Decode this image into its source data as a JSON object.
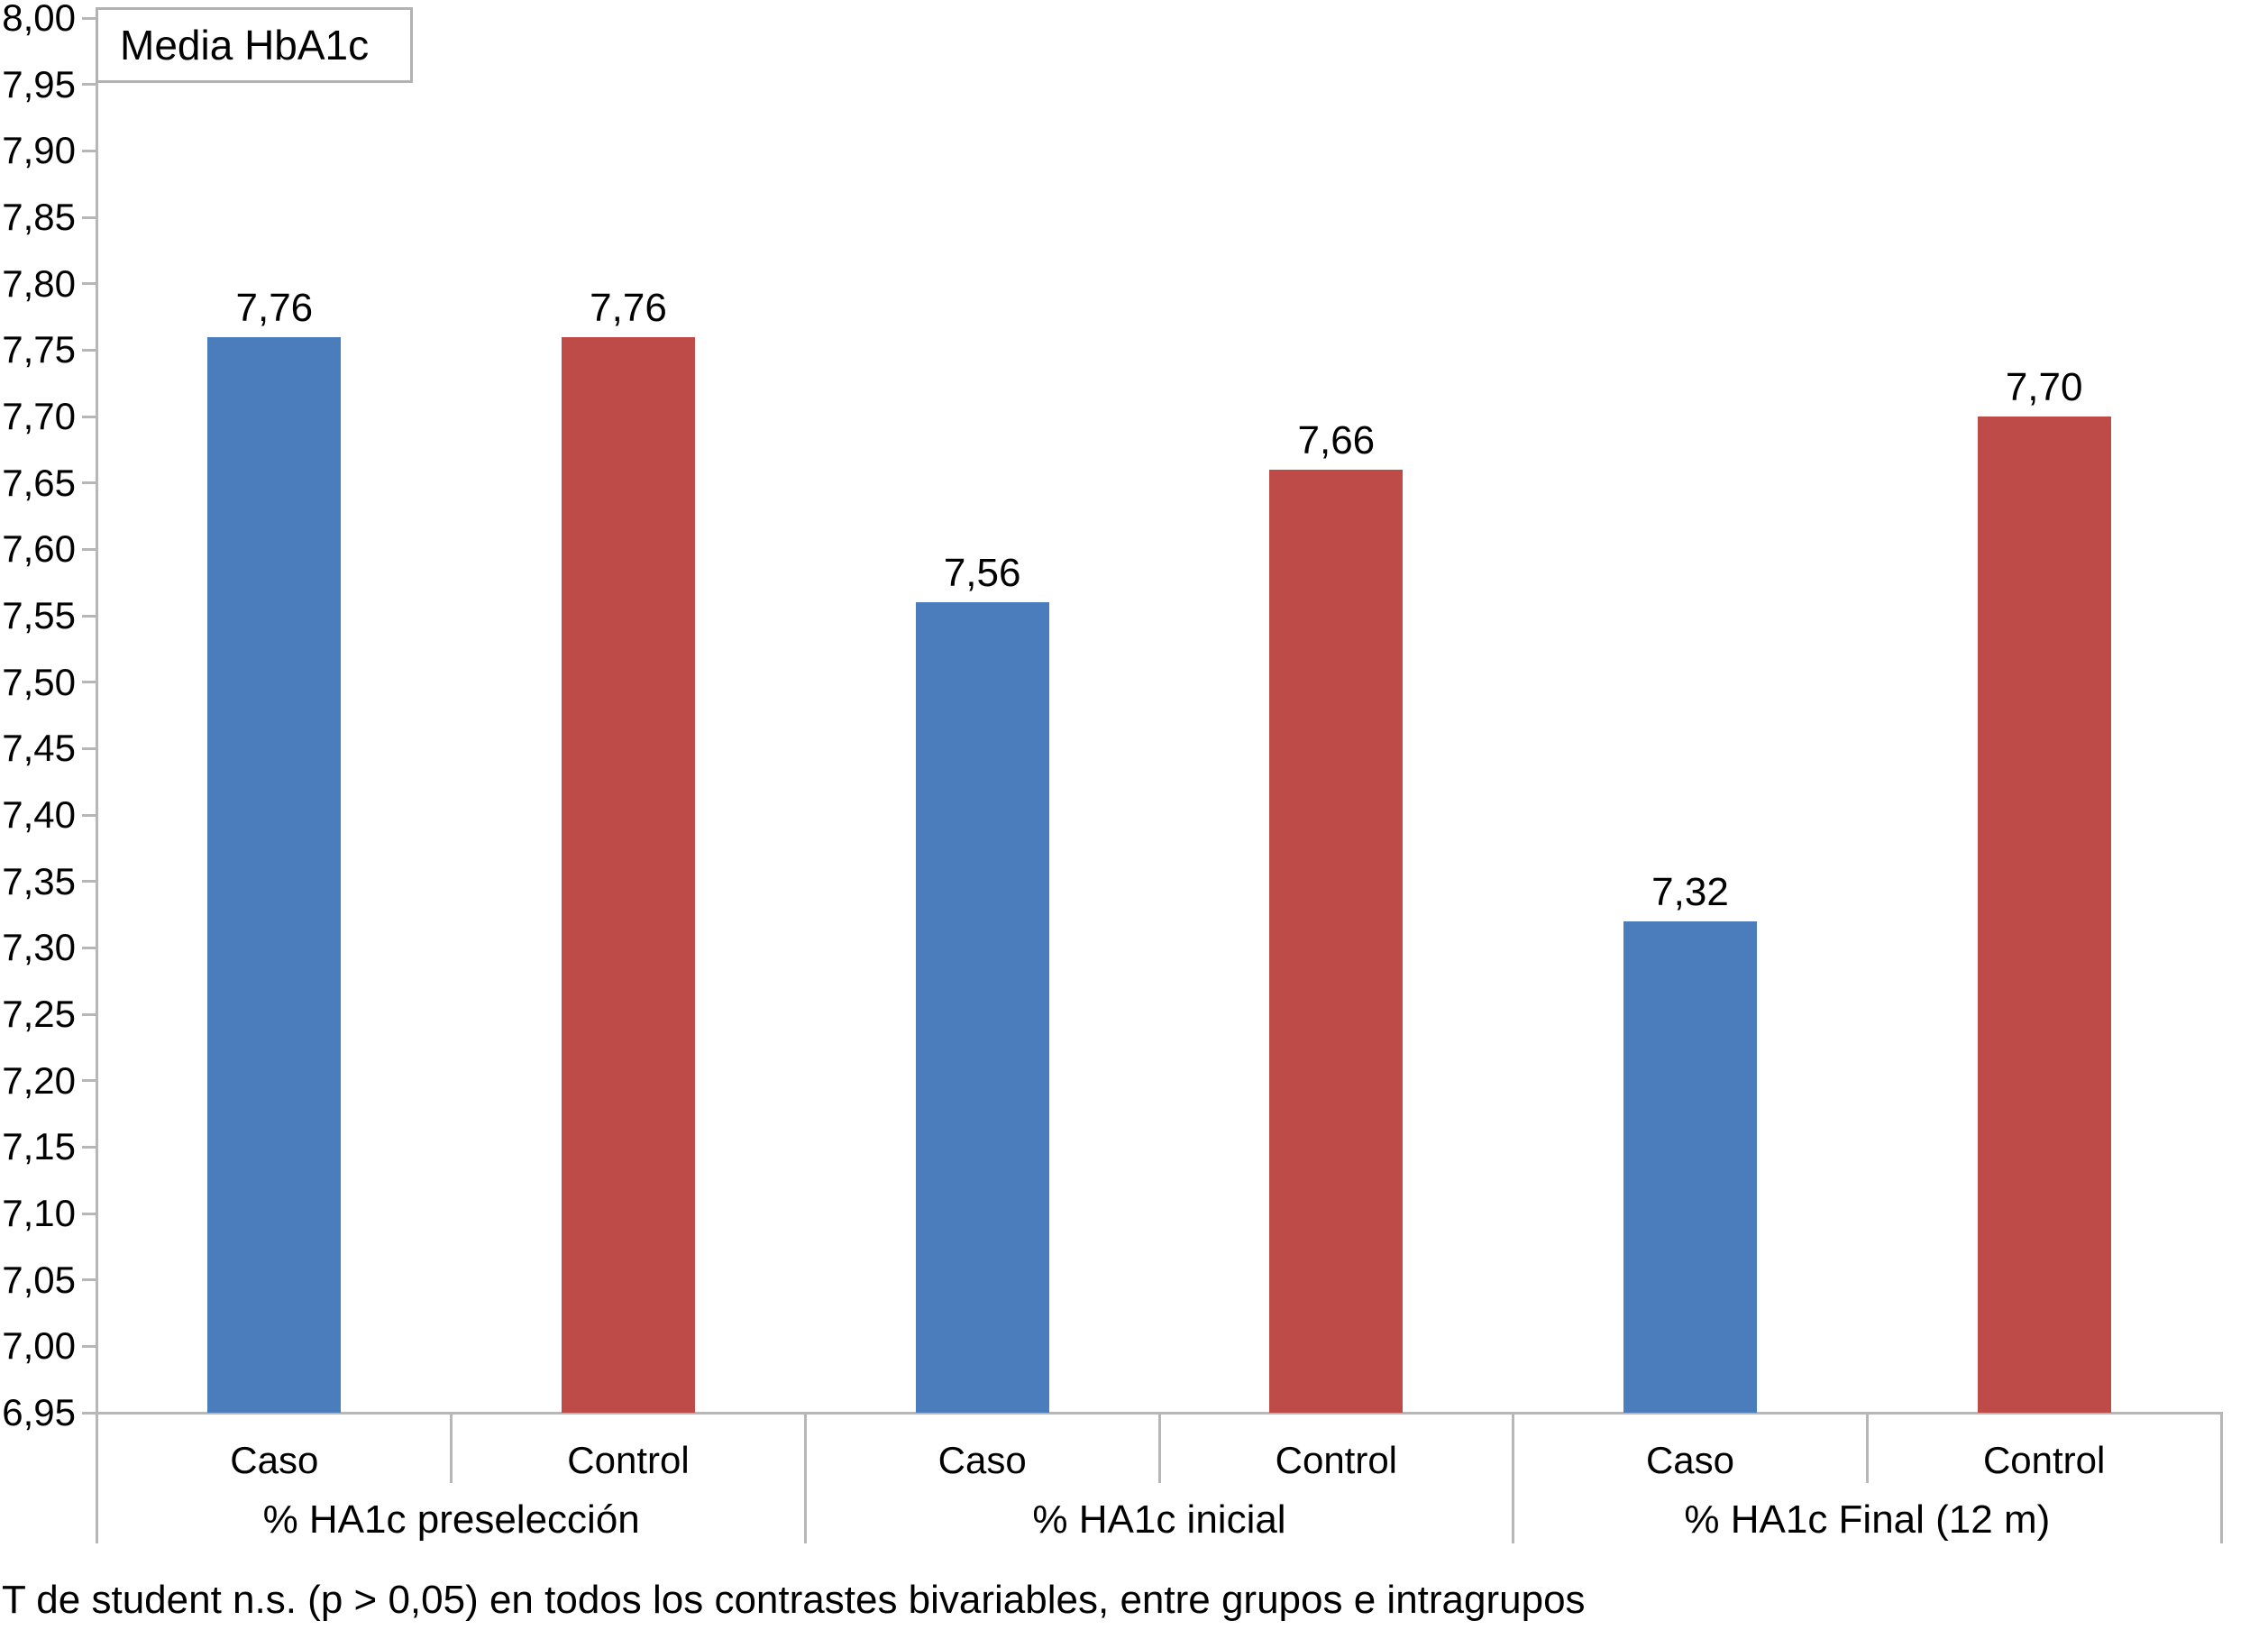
{
  "chart_data": {
    "type": "bar",
    "title": "Media HbA1c",
    "ylim": [
      6.95,
      8.0
    ],
    "ytick_step": 0.05,
    "ytick_labels": [
      "8,00",
      "7,95",
      "7,90",
      "7,85",
      "7,80",
      "7,75",
      "7,70",
      "7,65",
      "7,60",
      "7,55",
      "7,50",
      "7,45",
      "7,40",
      "7,35",
      "7,30",
      "7,25",
      "7,20",
      "7,15",
      "7,10",
      "7,05",
      "7,00",
      "6,95"
    ],
    "grid": false,
    "legend_position": "top-left-box",
    "value_labels_shown": true,
    "groups": [
      "% HA1c preselección",
      "% HA1c inicial",
      "% HA1c Final (12 m)"
    ],
    "categories": [
      "Caso",
      "Control"
    ],
    "series": [
      {
        "name": "Caso",
        "color": "#4b7cbb",
        "values": [
          7.76,
          7.56,
          7.32
        ],
        "value_labels": [
          "7,76",
          "7,56",
          "7,32"
        ]
      },
      {
        "name": "Control",
        "color": "#be4b48",
        "values": [
          7.76,
          7.66,
          7.7
        ],
        "value_labels": [
          "7,76",
          "7,66",
          "7,70"
        ]
      }
    ],
    "bars": [
      {
        "group": 0,
        "series": "Caso",
        "category_label": "Caso",
        "value": 7.76,
        "label": "7,76"
      },
      {
        "group": 0,
        "series": "Control",
        "category_label": "Control",
        "value": 7.76,
        "label": "7,76"
      },
      {
        "group": 1,
        "series": "Caso",
        "category_label": "Caso",
        "value": 7.56,
        "label": "7,56"
      },
      {
        "group": 1,
        "series": "Control",
        "category_label": "Control",
        "value": 7.66,
        "label": "7,66"
      },
      {
        "group": 2,
        "series": "Caso",
        "category_label": "Caso",
        "value": 7.32,
        "label": "7,32"
      },
      {
        "group": 2,
        "series": "Control",
        "category_label": "Control",
        "value": 7.7,
        "label": "7,70"
      }
    ]
  },
  "colors": {
    "caso_bar": "#4b7cbb",
    "control_bar": "#be4b48",
    "axis": "#b7b7b7",
    "text": "#000000",
    "background": "#ffffff",
    "legend_border": "#b2b2b2"
  },
  "footnote": "T de student n.s. (p > 0,05) en todos los contrastes bivariables, entre grupos e intragrupos"
}
